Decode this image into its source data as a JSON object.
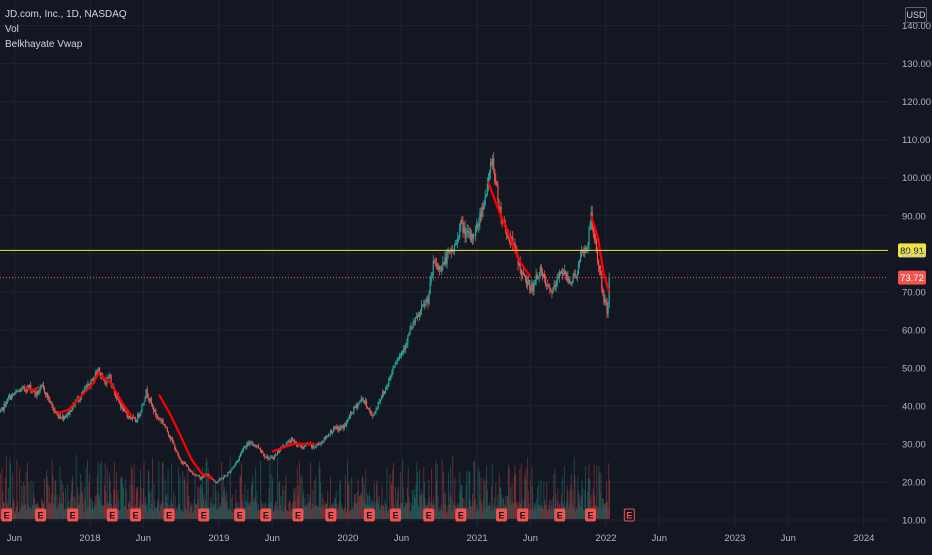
{
  "legend": {
    "symbol": "JD.com, Inc., 1D, NASDAQ",
    "indicator_vol": "Vol",
    "indicator_vwap": "Belkhayate Vwap"
  },
  "currency": "USD",
  "colors": {
    "background": "#131722",
    "grid": "#1f2330",
    "up": "#26a69a",
    "down": "#ef5350",
    "vwap": "#ff0000",
    "hline": "#f0e442",
    "last_price": "#f05350",
    "axis_text": "#b2b5be",
    "earnings_marker": "#f05350"
  },
  "chart_data": {
    "type": "candlestick",
    "title": "JD.com, Inc., 1D, NASDAQ",
    "y_axis": {
      "scale": "linear",
      "range": [
        10,
        142
      ],
      "ticks": [
        10.0,
        20.0,
        30.0,
        40.0,
        50.0,
        60.0,
        70.0,
        80.0,
        90.0,
        100.0,
        110.0,
        120.0,
        130.0,
        140.0
      ],
      "tick_labels": [
        "10.00",
        "20.00",
        "30.00",
        "40.00",
        "50.00",
        "60.00",
        "70.00",
        "80.00",
        "90.00",
        "100.00",
        "110.00",
        "120.00",
        "130.00",
        "140.00"
      ]
    },
    "x_axis": {
      "ticks": [
        {
          "date": "2017-06-01",
          "label": "Jun"
        },
        {
          "date": "2018-01-01",
          "label": "2018"
        },
        {
          "date": "2018-06-01",
          "label": "Jun"
        },
        {
          "date": "2019-01-01",
          "label": "2019"
        },
        {
          "date": "2019-06-01",
          "label": "Jun"
        },
        {
          "date": "2020-01-01",
          "label": "2020"
        },
        {
          "date": "2020-06-01",
          "label": "Jun"
        },
        {
          "date": "2021-01-01",
          "label": "2021"
        },
        {
          "date": "2021-06-01",
          "label": "Jun"
        },
        {
          "date": "2022-01-01",
          "label": "2022"
        },
        {
          "date": "2022-06-01",
          "label": "Jun"
        },
        {
          "date": "2023-01-01",
          "label": "2023"
        },
        {
          "date": "2023-06-01",
          "label": "Jun"
        },
        {
          "date": "2024-01-01",
          "label": "2024"
        }
      ]
    },
    "price_path": [
      [
        "2017-04-15",
        37
      ],
      [
        "2017-05-15",
        42
      ],
      [
        "2017-06-15",
        44
      ],
      [
        "2017-07-15",
        45
      ],
      [
        "2017-08-01",
        43
      ],
      [
        "2017-08-20",
        45
      ],
      [
        "2017-09-10",
        41
      ],
      [
        "2017-09-25",
        38
      ],
      [
        "2017-10-15",
        37
      ],
      [
        "2017-11-01",
        38
      ],
      [
        "2017-11-20",
        41
      ],
      [
        "2017-12-10",
        43
      ],
      [
        "2017-12-25",
        45
      ],
      [
        "2018-01-10",
        47
      ],
      [
        "2018-01-25",
        50
      ],
      [
        "2018-02-10",
        46
      ],
      [
        "2018-02-25",
        48
      ],
      [
        "2018-03-10",
        44
      ],
      [
        "2018-03-25",
        41
      ],
      [
        "2018-04-10",
        38
      ],
      [
        "2018-04-25",
        37
      ],
      [
        "2018-05-10",
        36
      ],
      [
        "2018-05-25",
        39
      ],
      [
        "2018-06-10",
        44
      ],
      [
        "2018-06-25",
        40
      ],
      [
        "2018-07-10",
        37
      ],
      [
        "2018-07-25",
        36
      ],
      [
        "2018-08-10",
        33
      ],
      [
        "2018-08-25",
        30
      ],
      [
        "2018-09-10",
        26
      ],
      [
        "2018-09-25",
        25
      ],
      [
        "2018-10-10",
        23
      ],
      [
        "2018-10-25",
        22
      ],
      [
        "2018-11-10",
        21
      ],
      [
        "2018-11-25",
        22
      ],
      [
        "2018-12-10",
        21
      ],
      [
        "2018-12-25",
        20
      ],
      [
        "2019-01-10",
        21
      ],
      [
        "2019-01-25",
        22
      ],
      [
        "2019-02-10",
        24
      ],
      [
        "2019-02-25",
        26
      ],
      [
        "2019-03-10",
        29
      ],
      [
        "2019-03-25",
        30
      ],
      [
        "2019-04-10",
        30
      ],
      [
        "2019-04-25",
        29
      ],
      [
        "2019-05-10",
        27
      ],
      [
        "2019-05-25",
        26
      ],
      [
        "2019-06-10",
        27
      ],
      [
        "2019-06-25",
        29
      ],
      [
        "2019-07-10",
        30
      ],
      [
        "2019-07-25",
        31
      ],
      [
        "2019-08-10",
        30
      ],
      [
        "2019-08-25",
        29
      ],
      [
        "2019-09-10",
        30
      ],
      [
        "2019-09-25",
        29
      ],
      [
        "2019-10-10",
        30
      ],
      [
        "2019-10-25",
        31
      ],
      [
        "2019-11-10",
        33
      ],
      [
        "2019-11-25",
        34
      ],
      [
        "2019-12-10",
        34
      ],
      [
        "2019-12-25",
        35
      ],
      [
        "2020-01-10",
        38
      ],
      [
        "2020-01-25",
        40
      ],
      [
        "2020-02-10",
        42
      ],
      [
        "2020-02-25",
        40
      ],
      [
        "2020-03-10",
        37
      ],
      [
        "2020-03-20",
        39
      ],
      [
        "2020-04-01",
        42
      ],
      [
        "2020-04-15",
        44
      ],
      [
        "2020-05-01",
        48
      ],
      [
        "2020-05-15",
        52
      ],
      [
        "2020-06-01",
        54
      ],
      [
        "2020-06-15",
        57
      ],
      [
        "2020-07-01",
        61
      ],
      [
        "2020-07-15",
        63
      ],
      [
        "2020-08-01",
        66
      ],
      [
        "2020-08-15",
        68
      ],
      [
        "2020-09-01",
        78
      ],
      [
        "2020-09-15",
        76
      ],
      [
        "2020-10-01",
        78
      ],
      [
        "2020-10-15",
        80
      ],
      [
        "2020-11-01",
        82
      ],
      [
        "2020-11-15",
        88
      ],
      [
        "2020-12-01",
        85
      ],
      [
        "2020-12-15",
        84
      ],
      [
        "2021-01-01",
        87
      ],
      [
        "2021-01-15",
        92
      ],
      [
        "2021-02-01",
        98
      ],
      [
        "2021-02-12",
        106
      ],
      [
        "2021-02-25",
        97
      ],
      [
        "2021-03-10",
        90
      ],
      [
        "2021-03-25",
        86
      ],
      [
        "2021-04-10",
        83
      ],
      [
        "2021-04-25",
        79
      ],
      [
        "2021-05-10",
        74
      ],
      [
        "2021-05-25",
        72
      ],
      [
        "2021-06-10",
        71
      ],
      [
        "2021-06-25",
        76
      ],
      [
        "2021-07-10",
        73
      ],
      [
        "2021-07-25",
        70
      ],
      [
        "2021-08-10",
        71
      ],
      [
        "2021-08-25",
        76
      ],
      [
        "2021-09-10",
        74
      ],
      [
        "2021-09-25",
        73
      ],
      [
        "2021-10-10",
        75
      ],
      [
        "2021-10-25",
        80
      ],
      [
        "2021-11-10",
        82
      ],
      [
        "2021-11-19",
        90
      ],
      [
        "2021-12-01",
        83
      ],
      [
        "2021-12-15",
        75
      ],
      [
        "2021-12-25",
        68
      ],
      [
        "2022-01-05",
        65
      ],
      [
        "2022-01-12",
        73.72
      ]
    ],
    "vwap_segments": [
      [
        [
          "2017-07-01",
          45
        ],
        [
          "2017-07-20",
          44
        ],
        [
          "2017-08-10",
          45
        ]
      ],
      [
        [
          "2017-10-01",
          38
        ],
        [
          "2017-11-01",
          39
        ],
        [
          "2017-12-01",
          42
        ],
        [
          "2018-01-10",
          46
        ],
        [
          "2018-01-28",
          49
        ]
      ],
      [
        [
          "2018-02-01",
          48
        ],
        [
          "2018-03-01",
          46
        ],
        [
          "2018-04-01",
          41
        ],
        [
          "2018-05-01",
          37
        ]
      ],
      [
        [
          "2018-07-15",
          43
        ],
        [
          "2018-08-15",
          38
        ],
        [
          "2018-09-15",
          32
        ],
        [
          "2018-10-15",
          26
        ],
        [
          "2018-11-15",
          22
        ],
        [
          "2018-12-15",
          21
        ]
      ],
      [
        [
          "2019-06-01",
          28
        ],
        [
          "2019-07-01",
          29
        ],
        [
          "2019-08-01",
          30
        ],
        [
          "2019-09-01",
          30
        ],
        [
          "2019-10-01",
          30
        ]
      ],
      [
        [
          "2021-02-01",
          99
        ],
        [
          "2021-03-01",
          92
        ],
        [
          "2021-04-01",
          85
        ],
        [
          "2021-05-01",
          78
        ],
        [
          "2021-06-01",
          74
        ]
      ],
      [
        [
          "2021-11-20",
          90
        ],
        [
          "2021-12-10",
          84
        ],
        [
          "2021-12-25",
          75
        ],
        [
          "2022-01-10",
          70
        ]
      ]
    ],
    "horizontal_line": {
      "value": 80.91,
      "label": "80.91"
    },
    "last_price": {
      "value": 73.72,
      "label": "73.72"
    },
    "earnings_markers": [
      {
        "date": "2017-05-10",
        "label": "E"
      },
      {
        "date": "2017-08-14",
        "label": "E"
      },
      {
        "date": "2017-11-13",
        "label": "E"
      },
      {
        "date": "2018-03-05",
        "label": "E"
      },
      {
        "date": "2018-05-10",
        "label": "E"
      },
      {
        "date": "2018-08-13",
        "label": "E"
      },
      {
        "date": "2018-11-19",
        "label": "E"
      },
      {
        "date": "2019-03-01",
        "label": "E"
      },
      {
        "date": "2019-05-14",
        "label": "E"
      },
      {
        "date": "2019-08-13",
        "label": "E"
      },
      {
        "date": "2019-11-14",
        "label": "E"
      },
      {
        "date": "2020-03-02",
        "label": "E"
      },
      {
        "date": "2020-05-15",
        "label": "E"
      },
      {
        "date": "2020-08-17",
        "label": "E"
      },
      {
        "date": "2020-11-16",
        "label": "E"
      },
      {
        "date": "2021-03-11",
        "label": "E"
      },
      {
        "date": "2021-05-10",
        "label": "E"
      },
      {
        "date": "2021-08-23",
        "label": "E"
      },
      {
        "date": "2021-11-18",
        "label": "E"
      },
      {
        "date": "2022-03-08",
        "label": "E"
      }
    ]
  }
}
